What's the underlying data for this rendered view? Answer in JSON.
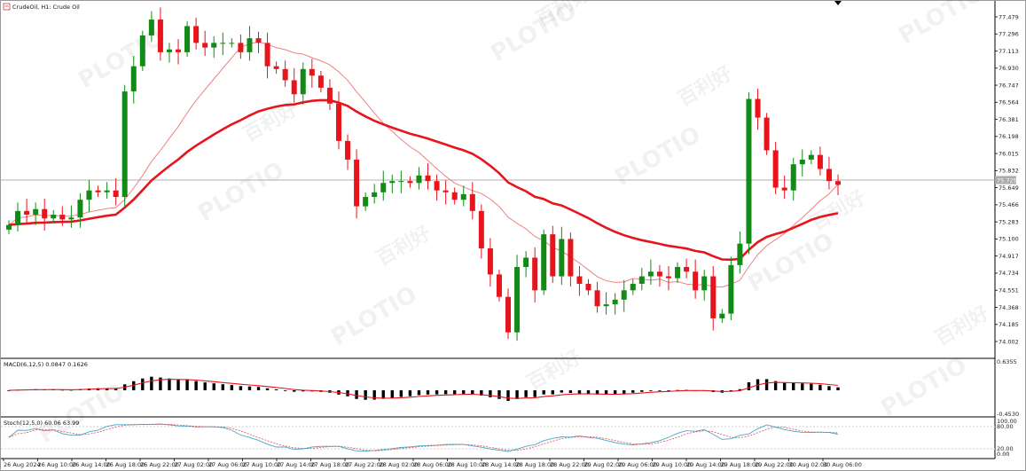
{
  "chart": {
    "symbol_title": "CrudeOil, H1:  Crude Oil",
    "price_badge": "75.725",
    "macd_label": "MACD(6,12,5) 0.0847 0.1626",
    "stoch_label": "Stoch(12,5,0) 60.06 63.99",
    "watermark": "PLOTIO",
    "watermark_cn": "百利好",
    "colors": {
      "bull": "#138a17",
      "bear": "#e8141c",
      "ma_slow": "#e8141c",
      "ma_fast": "#f08080",
      "stoch_main": "#4aa8c8",
      "stoch_signal": "#e24a4a"
    }
  },
  "chart_data": {
    "type": "candlestick",
    "price_axis_ticks": [
      "77.479",
      "77.296",
      "77.113",
      "76.930",
      "76.747",
      "76.564",
      "76.381",
      "76.198",
      "76.015",
      "75.832",
      "75.649",
      "75.466",
      "75.283",
      "75.100",
      "74.917",
      "74.734",
      "74.551",
      "74.368",
      "74.185",
      "74.002"
    ],
    "current_price": 75.725,
    "time_axis_ticks": [
      "26 Aug 2024",
      "26 Aug 10:00",
      "26 Aug 14:00",
      "26 Aug 18:00",
      "26 Aug 22:00",
      "27 Aug 02:00",
      "27 Aug 06:00",
      "27 Aug 10:00",
      "27 Aug 14:00",
      "27 Aug 18:00",
      "27 Aug 22:00",
      "28 Aug 02:00",
      "28 Aug 06:00",
      "28 Aug 10:00",
      "28 Aug 14:00",
      "28 Aug 18:00",
      "28 Aug 22:00",
      "29 Aug 02:00",
      "29 Aug 06:00",
      "29 Aug 10:00",
      "29 Aug 14:00",
      "29 Aug 18:00",
      "29 Aug 22:00",
      "30 Aug 02:00",
      "30 Aug 06:00"
    ],
    "closes": [
      75.25,
      75.4,
      75.36,
      75.42,
      75.32,
      75.36,
      75.31,
      75.33,
      75.52,
      75.62,
      75.6,
      75.62,
      75.55,
      76.68,
      76.95,
      77.28,
      77.45,
      77.1,
      77.13,
      77.1,
      77.38,
      77.2,
      77.15,
      77.2,
      77.2,
      77.2,
      77.1,
      77.25,
      77.2,
      76.95,
      76.92,
      76.8,
      76.65,
      76.92,
      76.85,
      76.72,
      76.55,
      76.15,
      75.95,
      75.45,
      75.55,
      75.6,
      75.7,
      75.72,
      75.72,
      75.7,
      75.78,
      75.72,
      75.62,
      75.6,
      75.52,
      75.58,
      75.4,
      75.0,
      74.72,
      74.48,
      74.1,
      74.8,
      74.9,
      74.55,
      75.15,
      74.7,
      75.1,
      74.7,
      74.62,
      74.55,
      74.38,
      74.4,
      74.45,
      74.55,
      74.62,
      74.7,
      74.75,
      74.7,
      74.68,
      74.8,
      74.75,
      74.55,
      74.7,
      74.25,
      74.3,
      74.82,
      75.05,
      76.6,
      76.4,
      76.05,
      75.65,
      75.62,
      75.9,
      75.95,
      76.0,
      75.85,
      75.72,
      75.68
    ]
  }
}
